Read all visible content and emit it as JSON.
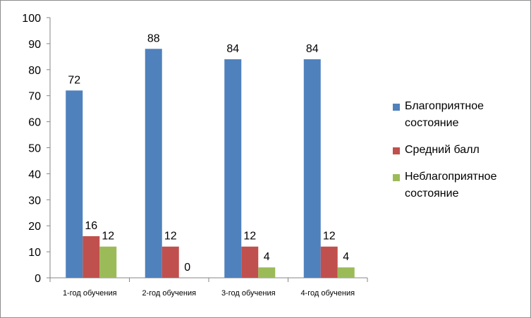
{
  "chart_data": {
    "type": "bar",
    "title": "",
    "xlabel": "",
    "ylabel": "",
    "categories": [
      "1-год обучения",
      "2-год обучения",
      "3-год обучения",
      "4-год обучения"
    ],
    "series": [
      {
        "name": "Благоприятное состояние",
        "values": [
          72,
          88,
          84,
          84
        ],
        "color": "#4f81bd",
        "labels": [
          "72",
          "88",
          "84",
          "84"
        ]
      },
      {
        "name": "Средний балл",
        "values": [
          16,
          12,
          12,
          12
        ],
        "color": "#c0504d",
        "labels": [
          "16",
          "12",
          "12",
          "12"
        ]
      },
      {
        "name": "Неблагоприятное состояние",
        "values": [
          12,
          0,
          4,
          4
        ],
        "color": "#9bbb59",
        "labels": [
          "12",
          "0",
          "4",
          "4"
        ]
      }
    ],
    "ylim": [
      0,
      100
    ],
    "yticks": [
      "0",
      "10",
      "20",
      "30",
      "40",
      "50",
      "60",
      "70",
      "80",
      "90",
      "100"
    ],
    "grid": false,
    "legend_position": "right"
  }
}
